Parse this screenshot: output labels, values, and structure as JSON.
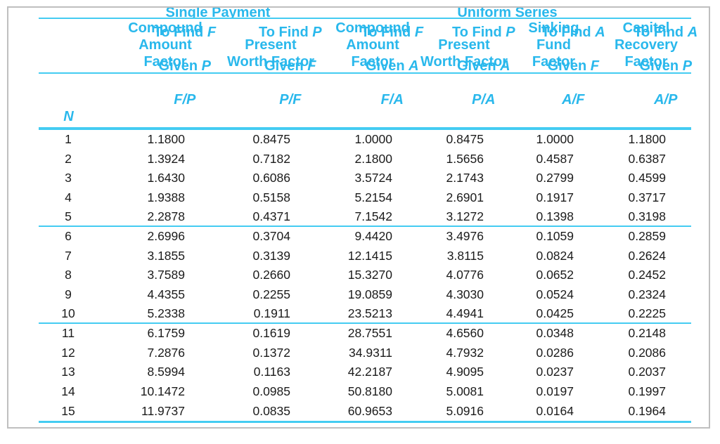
{
  "groups": {
    "single_payment": "Single Payment",
    "uniform_series": "Uniform Series"
  },
  "columns": {
    "n_label": "N",
    "headers": [
      "Compound\nAmount\nFactor",
      "Present\nWorth Factor",
      "Compound\nAmount\nFactor",
      "Present\nWorth Factor",
      "Sinking\nFund\nFactor",
      "Capital\nRecovery\nFactor"
    ],
    "subheaders": [
      {
        "find": "To Find",
        "find_var": "F",
        "given": "Given",
        "given_var": "P",
        "code": "F/P"
      },
      {
        "find": "To Find",
        "find_var": "P",
        "given": "Given",
        "given_var": "F",
        "code": "P/F"
      },
      {
        "find": "To Find",
        "find_var": "F",
        "given": "Given",
        "given_var": "A",
        "code": "F/A"
      },
      {
        "find": "To Find",
        "find_var": "P",
        "given": "Given",
        "given_var": "A",
        "code": "P/A"
      },
      {
        "find": "To Find",
        "find_var": "A",
        "given": "Given",
        "given_var": "F",
        "code": "A/F"
      },
      {
        "find": "To Find",
        "find_var": "A",
        "given": "Given",
        "given_var": "P",
        "code": "A/P"
      }
    ]
  },
  "table": {
    "rows": [
      [
        "1",
        "1.1800",
        "0.8475",
        "1.0000",
        "0.8475",
        "1.0000",
        "1.1800"
      ],
      [
        "2",
        "1.3924",
        "0.7182",
        "2.1800",
        "1.5656",
        "0.4587",
        "0.6387"
      ],
      [
        "3",
        "1.6430",
        "0.6086",
        "3.5724",
        "2.1743",
        "0.2799",
        "0.4599"
      ],
      [
        "4",
        "1.9388",
        "0.5158",
        "5.2154",
        "2.6901",
        "0.1917",
        "0.3717"
      ],
      [
        "5",
        "2.2878",
        "0.4371",
        "7.1542",
        "3.1272",
        "0.1398",
        "0.3198"
      ],
      [
        "6",
        "2.6996",
        "0.3704",
        "9.4420",
        "3.4976",
        "0.1059",
        "0.2859"
      ],
      [
        "7",
        "3.1855",
        "0.3139",
        "12.1415",
        "3.8115",
        "0.0824",
        "0.2624"
      ],
      [
        "8",
        "3.7589",
        "0.2660",
        "15.3270",
        "4.0776",
        "0.0652",
        "0.2452"
      ],
      [
        "9",
        "4.4355",
        "0.2255",
        "19.0859",
        "4.3030",
        "0.0524",
        "0.2324"
      ],
      [
        "10",
        "5.2338",
        "0.1911",
        "23.5213",
        "4.4941",
        "0.0425",
        "0.2225"
      ],
      [
        "11",
        "6.1759",
        "0.1619",
        "28.7551",
        "4.6560",
        "0.0348",
        "0.2148"
      ],
      [
        "12",
        "7.2876",
        "0.1372",
        "34.9311",
        "4.7932",
        "0.0286",
        "0.2086"
      ],
      [
        "13",
        "8.5994",
        "0.1163",
        "42.2187",
        "4.9095",
        "0.0237",
        "0.2037"
      ],
      [
        "14",
        "10.1472",
        "0.0985",
        "50.8180",
        "5.0081",
        "0.0197",
        "0.1997"
      ],
      [
        "15",
        "11.9737",
        "0.0835",
        "60.9653",
        "5.0916",
        "0.0164",
        "0.1964"
      ]
    ]
  },
  "colors": {
    "accent_text": "#29b8ec",
    "rule": "#44ccf2",
    "frame_border": "#bfbfbf",
    "data_text": "#1b1b1b"
  }
}
